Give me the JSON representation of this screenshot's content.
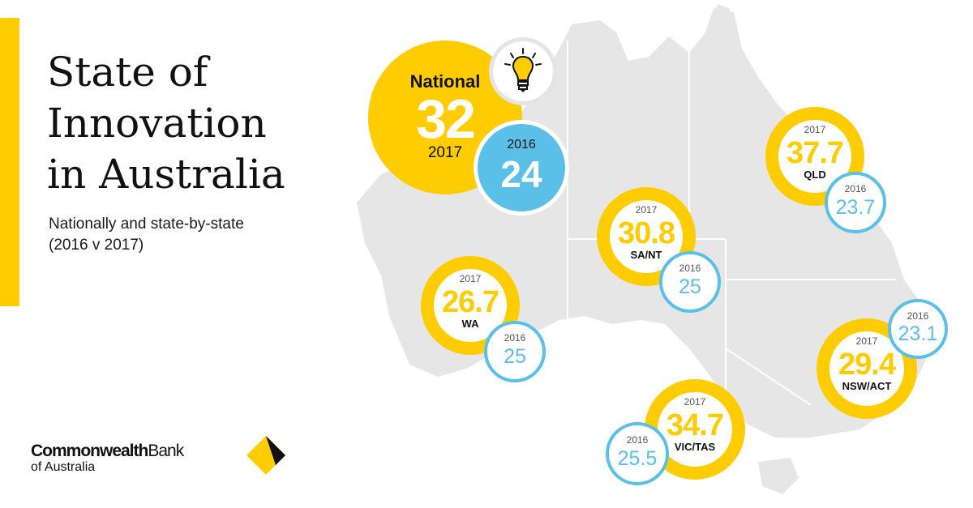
{
  "title": "State of\nInnovation\nin Australia",
  "subtitle": "Nationally and state-by-state\n(2016 v 2017)",
  "national": {
    "label": "National",
    "value_2017": "32",
    "year_2017": "2017",
    "year_2016": "2016",
    "value_2016": "24"
  },
  "icons": {
    "bulb": "lightbulb-icon",
    "logo": "diamond-logo-icon"
  },
  "states": [
    {
      "name": "QLD",
      "year_2017": "2017",
      "value_2017": "37.7",
      "year_2016": "2016",
      "value_2016": "23.7"
    },
    {
      "name": "SA/NT",
      "year_2017": "2017",
      "value_2017": "30.8",
      "year_2016": "2016",
      "value_2016": "25"
    },
    {
      "name": "WA",
      "year_2017": "2017",
      "value_2017": "26.7",
      "year_2016": "2016",
      "value_2016": "25"
    },
    {
      "name": "NSW/ACT",
      "year_2017": "2017",
      "value_2017": "29.4",
      "year_2016": "2016",
      "value_2016": "23.1"
    },
    {
      "name": "VIC/TAS",
      "year_2017": "2017",
      "value_2017": "34.7",
      "year_2016": "2016",
      "value_2016": "25.5"
    }
  ],
  "brand": {
    "name_bold": "Commonwealth",
    "name_regular": "Bank",
    "line2": "of Australia"
  },
  "colors": {
    "yellow": "#FFCC00",
    "blue": "#5BC0E8",
    "map_gray": "#E6E6E6",
    "text": "#111111"
  }
}
